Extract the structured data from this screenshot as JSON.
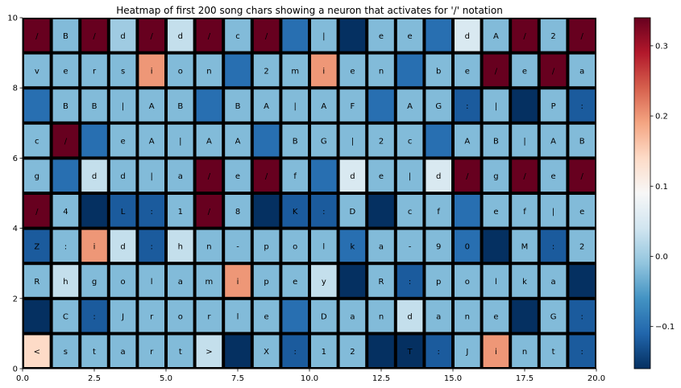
{
  "chart_data": {
    "type": "heatmap",
    "title": "Heatmap of first 200 song chars showing a neuron that activates for '/' notation",
    "xlabel": "",
    "ylabel": "",
    "xlim": [
      0,
      20
    ],
    "ylim": [
      0,
      10
    ],
    "x_ticks": [
      "0.0",
      "2.5",
      "5.0",
      "7.5",
      "10.0",
      "12.5",
      "15.0",
      "17.5",
      "20.0"
    ],
    "y_ticks": [
      "0",
      "2",
      "4",
      "6",
      "8",
      "10"
    ],
    "colorbar": {
      "colormap": "RdBu_r",
      "vmin": -0.16,
      "vmax": 0.34,
      "ticks": [
        "−0.1",
        "0.0",
        "0.1",
        "0.2",
        "0.3"
      ]
    },
    "rows": [
      {
        "chars": [
          "/",
          "B",
          "/",
          "d",
          "/",
          "d",
          "/",
          "c",
          "/",
          "",
          "|",
          "",
          "e",
          "e",
          "",
          "d",
          "A",
          "/",
          "2",
          "/"
        ],
        "values": [
          0.34,
          -0.02,
          0.34,
          0.0,
          0.34,
          0.03,
          0.34,
          -0.02,
          0.34,
          -0.1,
          -0.02,
          -0.16,
          -0.02,
          -0.02,
          -0.1,
          0.05,
          -0.02,
          0.34,
          -0.02,
          0.34
        ]
      },
      {
        "chars": [
          "v",
          "e",
          "r",
          "s",
          "i",
          "o",
          "n",
          "",
          "2",
          "m",
          "i",
          "e",
          "n",
          "",
          "b",
          "e",
          "/",
          "e",
          "/",
          "a"
        ],
        "values": [
          -0.02,
          -0.02,
          -0.02,
          -0.02,
          0.2,
          -0.02,
          -0.02,
          -0.1,
          -0.02,
          -0.02,
          0.2,
          -0.02,
          -0.02,
          -0.1,
          -0.02,
          -0.02,
          0.34,
          -0.02,
          0.34,
          -0.02
        ]
      },
      {
        "chars": [
          "",
          "B",
          "B",
          "|",
          "A",
          "B",
          "",
          "B",
          "A",
          "|",
          "A",
          "F",
          "",
          "A",
          "G",
          ":",
          "|",
          "",
          "P",
          ":"
        ],
        "values": [
          -0.1,
          -0.02,
          -0.02,
          -0.02,
          -0.02,
          -0.02,
          -0.1,
          -0.02,
          -0.02,
          -0.02,
          -0.02,
          -0.02,
          -0.1,
          -0.02,
          -0.02,
          -0.12,
          -0.02,
          -0.16,
          -0.02,
          -0.12
        ]
      },
      {
        "chars": [
          "c",
          "/",
          "",
          "e",
          "A",
          "|",
          "A",
          "A",
          "",
          "B",
          "G",
          "|",
          "2",
          "c",
          "",
          "A",
          "B",
          "|",
          "A",
          "B"
        ],
        "values": [
          -0.02,
          0.34,
          -0.1,
          -0.02,
          -0.02,
          -0.02,
          -0.02,
          -0.02,
          -0.1,
          -0.02,
          -0.02,
          -0.02,
          -0.02,
          -0.02,
          -0.1,
          -0.02,
          -0.02,
          -0.02,
          -0.02,
          -0.02
        ]
      },
      {
        "chars": [
          "g",
          "",
          "d",
          "d",
          "|",
          "a",
          "/",
          "e",
          "/",
          "f",
          "",
          "d",
          "e",
          "|",
          "d",
          "/",
          "g",
          "/",
          "e",
          "/"
        ],
        "values": [
          -0.02,
          -0.1,
          0.03,
          -0.02,
          -0.02,
          -0.02,
          0.34,
          -0.02,
          0.34,
          -0.02,
          -0.1,
          0.05,
          -0.02,
          -0.02,
          0.05,
          0.34,
          -0.02,
          0.34,
          -0.02,
          0.34
        ]
      },
      {
        "chars": [
          "/",
          "4",
          "",
          "L",
          ":",
          "1",
          "/",
          "8",
          "",
          "K",
          ":",
          "D",
          "",
          "c",
          "f",
          "",
          "e",
          "f",
          "|",
          "e"
        ],
        "values": [
          0.34,
          -0.02,
          -0.16,
          -0.12,
          -0.12,
          -0.02,
          0.34,
          -0.02,
          -0.16,
          -0.12,
          -0.12,
          -0.02,
          -0.16,
          -0.02,
          -0.02,
          -0.1,
          -0.02,
          -0.02,
          -0.02,
          -0.02
        ]
      },
      {
        "chars": [
          "Z",
          ":",
          "i",
          "d",
          ":",
          "h",
          "n",
          "-",
          "p",
          "o",
          "l",
          "k",
          "a",
          "-",
          "9",
          "0",
          "",
          "M",
          ":",
          "2"
        ],
        "values": [
          -0.12,
          -0.02,
          0.2,
          0.03,
          -0.12,
          0.03,
          -0.02,
          -0.02,
          -0.02,
          -0.02,
          -0.02,
          -0.1,
          -0.02,
          -0.02,
          -0.02,
          -0.1,
          -0.16,
          -0.02,
          -0.12,
          -0.02
        ]
      },
      {
        "chars": [
          "R",
          "h",
          "g",
          "o",
          "l",
          "a",
          "m",
          "i",
          "p",
          "e",
          "y",
          "",
          "R",
          ":",
          "p",
          "o",
          "l",
          "k",
          "a",
          ""
        ],
        "values": [
          -0.02,
          0.03,
          -0.02,
          -0.02,
          -0.02,
          -0.02,
          -0.02,
          0.2,
          -0.02,
          -0.02,
          0.03,
          -0.16,
          -0.02,
          -0.12,
          -0.02,
          -0.02,
          -0.02,
          -0.02,
          -0.02,
          -0.16
        ]
      },
      {
        "chars": [
          "",
          "C",
          ":",
          "J",
          "r",
          "o",
          "r",
          "l",
          "e",
          "",
          "D",
          "a",
          "n",
          "d",
          "a",
          "n",
          "e",
          "",
          "G",
          ":"
        ],
        "values": [
          -0.16,
          -0.02,
          -0.12,
          -0.02,
          -0.02,
          -0.02,
          -0.02,
          -0.02,
          -0.02,
          -0.1,
          -0.02,
          -0.02,
          -0.02,
          0.03,
          -0.02,
          -0.02,
          -0.02,
          -0.16,
          -0.02,
          -0.12
        ]
      },
      {
        "chars": [
          "<",
          "s",
          "t",
          "a",
          "r",
          "t",
          ">",
          "",
          "X",
          ":",
          "1",
          "2",
          "",
          "T",
          ":",
          "J",
          "i",
          "n",
          "t",
          ":"
        ],
        "values": [
          0.14,
          -0.02,
          -0.02,
          -0.02,
          -0.02,
          -0.02,
          0.03,
          -0.16,
          -0.02,
          -0.12,
          -0.02,
          -0.02,
          -0.16,
          -0.16,
          -0.12,
          -0.02,
          0.2,
          -0.02,
          -0.02,
          -0.12
        ]
      }
    ]
  }
}
